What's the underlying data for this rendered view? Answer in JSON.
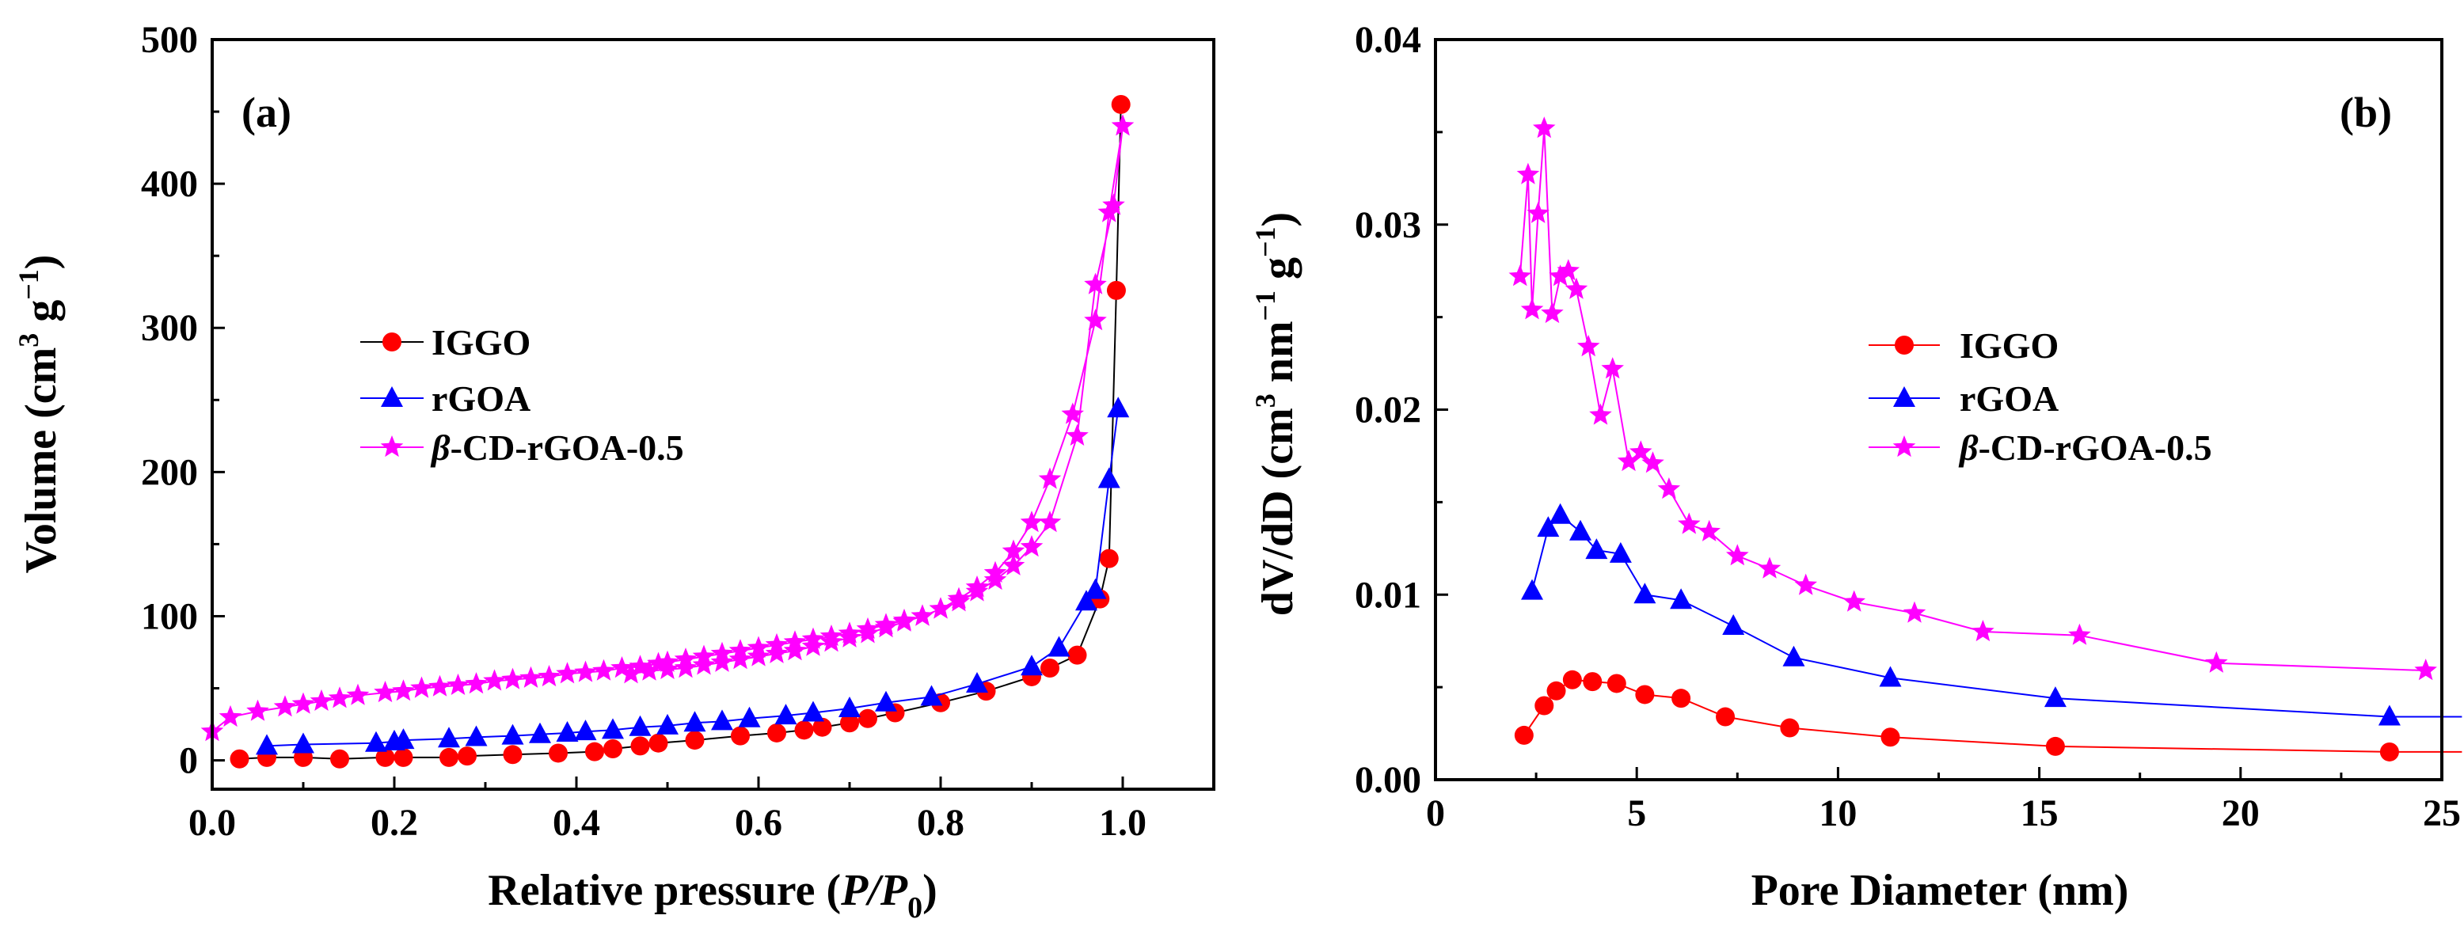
{
  "colors": {
    "IGGO": "#ff0000",
    "rGOA": "#0000ff",
    "beta": "#ff00ff",
    "IGGO_line_a": "#000000",
    "axis": "#000000"
  },
  "panel_a": {
    "label": "(a)",
    "xlabel": {
      "text": "Relative pressure (",
      "italic": "P/P",
      "sub": "0",
      "close": ")"
    },
    "ylabel": {
      "text": "Volume (cm",
      "sup1": "3",
      "mid": " g",
      "sup2": "−1",
      "close": ")"
    },
    "x_ticks": [
      "0.0",
      "0.2",
      "0.4",
      "0.6",
      "0.8",
      "1.0"
    ],
    "y_ticks": [
      "0",
      "100",
      "200",
      "300",
      "400",
      "500"
    ],
    "legend": [
      {
        "name": "IGGO",
        "label": "IGGO"
      },
      {
        "name": "rGOA",
        "label": "rGOA"
      },
      {
        "name": "beta",
        "greek": "β",
        "label": "-CD-rGOA-0.5"
      }
    ]
  },
  "panel_b": {
    "label": "(b)",
    "xlabel": "Pore Diameter (nm)",
    "ylabel": {
      "text": "dV/dD (cm",
      "sup1": "3",
      "mid1": " nm",
      "sup2": "−1",
      "mid2": " g",
      "sup3": "−1",
      "close": ")"
    },
    "x_ticks": [
      "0",
      "5",
      "10",
      "15",
      "20",
      "25"
    ],
    "y_ticks": [
      "0.00",
      "0.01",
      "0.02",
      "0.03",
      "0.04"
    ],
    "legend": [
      {
        "name": "IGGO",
        "label": "IGGO"
      },
      {
        "name": "rGOA",
        "label": "rGOA"
      },
      {
        "name": "beta",
        "greek": "β",
        "label": "-CD-rGOA-0.5"
      }
    ]
  },
  "chart_data": [
    {
      "id": "a",
      "type": "scatter",
      "title": "(a)",
      "xlabel": "Relative pressure (P/P0)",
      "ylabel": "Volume (cm3 g-1)",
      "xlim": [
        0.0,
        1.1
      ],
      "ylim": [
        -20,
        500
      ],
      "series": [
        {
          "name": "IGGO",
          "marker": "circle",
          "x": [
            0.03,
            0.06,
            0.1,
            0.14,
            0.19,
            0.21,
            0.26,
            0.28,
            0.33,
            0.38,
            0.42,
            0.44,
            0.47,
            0.49,
            0.53,
            0.58,
            0.62,
            0.65,
            0.67,
            0.7,
            0.72,
            0.75,
            0.8,
            0.85,
            0.9,
            0.92,
            0.95,
            0.975,
            0.985,
            0.993,
            0.998
          ],
          "y": [
            1,
            2,
            2,
            1,
            2,
            2,
            2,
            3,
            4,
            5,
            6,
            8,
            10,
            12,
            14,
            17,
            19,
            21,
            23,
            26,
            29,
            33,
            40,
            48,
            58,
            64,
            73,
            112,
            140,
            326,
            455
          ]
        },
        {
          "name": "rGOA",
          "marker": "triangle",
          "x": [
            0.06,
            0.1,
            0.18,
            0.2,
            0.21,
            0.26,
            0.29,
            0.33,
            0.36,
            0.39,
            0.41,
            0.44,
            0.47,
            0.5,
            0.53,
            0.56,
            0.59,
            0.63,
            0.66,
            0.7,
            0.74,
            0.79,
            0.84,
            0.9,
            0.93,
            0.96,
            0.97,
            0.985,
            0.995
          ],
          "y": [
            10,
            11,
            12,
            13,
            14,
            15,
            16,
            17,
            18,
            19,
            20,
            21,
            23,
            24,
            26,
            27,
            29,
            31,
            33,
            36,
            40,
            44,
            53,
            65,
            78,
            110,
            118,
            195,
            244
          ]
        },
        {
          "name": "β-CD-rGOA-0.5",
          "marker": "star",
          "x": [
            0.0,
            0.02,
            0.05,
            0.08,
            0.1,
            0.12,
            0.14,
            0.16,
            0.19,
            0.21,
            0.23,
            0.25,
            0.27,
            0.29,
            0.31,
            0.33,
            0.35,
            0.37,
            0.39,
            0.41,
            0.43,
            0.45,
            0.47,
            0.49,
            0.5,
            0.52,
            0.54,
            0.56,
            0.58,
            0.6,
            0.62,
            0.64,
            0.66,
            0.68,
            0.7,
            0.72,
            0.74,
            0.76,
            0.78,
            0.8,
            0.82,
            0.84,
            0.86,
            0.88,
            0.9,
            0.92,
            0.95,
            0.97,
            0.99,
            1.0,
            0.985,
            0.97,
            0.945,
            0.92,
            0.9,
            0.88,
            0.86,
            0.84,
            0.82,
            0.8,
            0.78,
            0.76,
            0.74,
            0.72,
            0.7,
            0.68,
            0.66,
            0.64,
            0.62,
            0.6,
            0.58,
            0.56,
            0.54,
            0.52,
            0.5,
            0.48,
            0.46
          ],
          "y": [
            20,
            30,
            34,
            37,
            39,
            41,
            43,
            45,
            47,
            48,
            50,
            51,
            52,
            53,
            55,
            56,
            57,
            58,
            60,
            61,
            62,
            64,
            65,
            67,
            68,
            70,
            72,
            74,
            76,
            78,
            80,
            82,
            84,
            86,
            88,
            91,
            94,
            97,
            100,
            105,
            110,
            117,
            125,
            135,
            148,
            165,
            225,
            330,
            385,
            440,
            380,
            305,
            240,
            195,
            165,
            145,
            130,
            120,
            112,
            105,
            100,
            96,
            92,
            88,
            85,
            82,
            79,
            76,
            74,
            72,
            70,
            68,
            66,
            64,
            63,
            62,
            60
          ]
        }
      ]
    },
    {
      "id": "b",
      "type": "line",
      "title": "(b)",
      "xlabel": "Pore Diameter (nm)",
      "ylabel": "dV/dD (cm3 nm-1 g-1)",
      "xlim": [
        0,
        25
      ],
      "ylim": [
        0,
        0.04
      ],
      "series": [
        {
          "name": "IGGO",
          "marker": "circle",
          "x": [
            2.2,
            2.7,
            3.0,
            3.4,
            3.9,
            4.5,
            5.2,
            6.1,
            7.2,
            8.8,
            11.3,
            15.4,
            23.7,
            25.5
          ],
          "y": [
            0.0024,
            0.004,
            0.0048,
            0.0054,
            0.0053,
            0.0052,
            0.0046,
            0.0044,
            0.0034,
            0.0028,
            0.0023,
            0.0018,
            0.0015,
            0.0015
          ]
        },
        {
          "name": "rGOA",
          "marker": "triangle",
          "x": [
            2.4,
            2.8,
            3.1,
            3.6,
            4.0,
            4.6,
            5.2,
            6.1,
            7.4,
            8.9,
            11.3,
            15.4,
            23.7,
            25.5
          ],
          "y": [
            0.0102,
            0.0136,
            0.0143,
            0.0134,
            0.0124,
            0.0122,
            0.01,
            0.0097,
            0.0083,
            0.0066,
            0.0055,
            0.0044,
            0.0034,
            0.0034
          ]
        },
        {
          "name": "β-CD-rGOA-0.5",
          "marker": "star",
          "x": [
            2.1,
            2.3,
            2.4,
            2.55,
            2.7,
            2.9,
            3.1,
            3.3,
            3.5,
            3.8,
            4.1,
            4.4,
            4.8,
            5.1,
            5.4,
            5.8,
            6.3,
            6.8,
            7.5,
            8.3,
            9.2,
            10.4,
            11.9,
            13.6,
            16.0,
            19.4,
            24.6
          ],
          "y": [
            0.0272,
            0.0327,
            0.0254,
            0.0306,
            0.0352,
            0.0252,
            0.0272,
            0.0275,
            0.0265,
            0.0234,
            0.0197,
            0.0222,
            0.0172,
            0.0177,
            0.0171,
            0.0157,
            0.0138,
            0.0134,
            0.0121,
            0.0114,
            0.0105,
            0.0096,
            0.009,
            0.008,
            0.0078,
            0.0063,
            0.0059
          ]
        }
      ]
    }
  ]
}
